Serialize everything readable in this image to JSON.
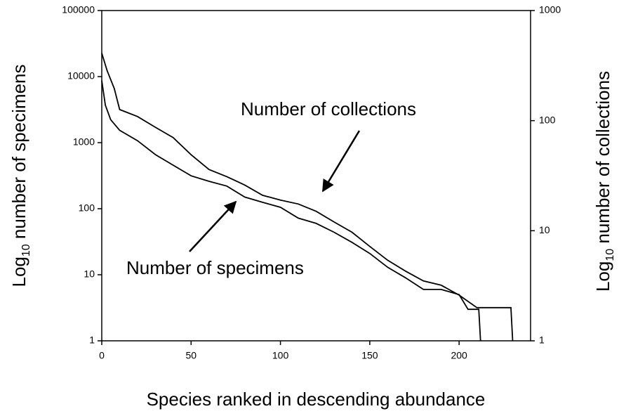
{
  "chart_data": {
    "type": "line",
    "xlabel": "Species ranked in descending abundance",
    "ylabel": {
      "main": "Log",
      "sub": "10",
      "rest": " number of specimens"
    },
    "y2label": {
      "main": "Log",
      "sub": "10",
      "rest": " number of collections"
    },
    "xlim": [
      0,
      240
    ],
    "xticks": [
      0,
      50,
      100,
      150,
      200
    ],
    "ylim": [
      1,
      100000
    ],
    "yticks": [
      1,
      10,
      100,
      1000,
      10000,
      100000
    ],
    "ylog": true,
    "y2lim": [
      1,
      1000
    ],
    "y2ticks": [
      1,
      10,
      100,
      1000
    ],
    "y2log": true,
    "grid": false,
    "annotations": [
      "Number of collections",
      "Number of specimens"
    ],
    "series": [
      {
        "name": "Number of specimens",
        "color": "#000000",
        "axis": "y",
        "x": [
          0,
          2,
          5,
          10,
          20,
          30,
          40,
          50,
          60,
          70,
          80,
          90,
          100,
          110,
          120,
          130,
          140,
          150,
          160,
          170,
          180,
          190,
          200,
          205,
          211,
          212
        ],
        "values": [
          8700,
          3700,
          2230,
          1540,
          1070,
          660,
          455,
          315,
          260,
          220,
          150,
          125,
          105,
          72,
          60,
          44,
          31,
          21,
          13,
          9,
          6,
          6,
          5,
          3,
          3,
          1
        ]
      },
      {
        "name": "Number of collections",
        "color": "#000000",
        "axis": "y2",
        "x": [
          0,
          3,
          7,
          10,
          20,
          30,
          40,
          50,
          60,
          70,
          80,
          90,
          100,
          110,
          120,
          130,
          140,
          150,
          160,
          170,
          180,
          190,
          200,
          210,
          220,
          229,
          230
        ],
        "values": [
          410,
          285,
          196,
          126,
          109,
          87,
          70,
          49,
          36,
          31,
          26,
          21,
          19,
          17.5,
          15,
          12,
          9.7,
          7.2,
          5.4,
          4.3,
          3.5,
          3.2,
          2.6,
          2,
          2,
          2,
          1
        ]
      }
    ]
  }
}
